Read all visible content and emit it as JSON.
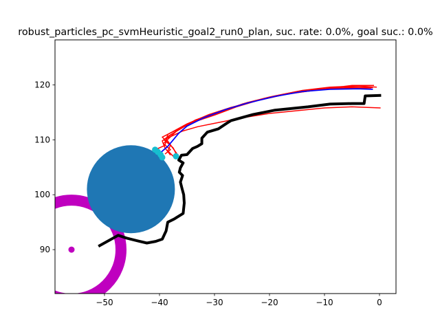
{
  "chart_data": {
    "type": "line",
    "title": "robust_particles_pc_svmHeuristic_goal2_run0_plan, suc. rate: 0.0%, goal suc.: 0.0%",
    "xlabel": "",
    "ylabel": "",
    "xlim": [
      -59.0,
      3.0
    ],
    "ylim": [
      82.0,
      128.2
    ],
    "xticks": [
      -50,
      -40,
      -30,
      -20,
      -10,
      0
    ],
    "yticks": [
      90,
      100,
      110,
      120
    ],
    "grid": false,
    "legend": "none",
    "colors": {
      "actual_path": "#000000",
      "particle_paths": "#ff0000",
      "planned_path": "#0000ff",
      "obstacle": "#1f77b4",
      "goal": "#bf00bf",
      "markers": "#17becf"
    },
    "actual_path": [
      [
        -51.1,
        90.6
      ],
      [
        -47.5,
        92.6
      ],
      [
        -46.0,
        92.1
      ],
      [
        -44.0,
        91.6
      ],
      [
        -42.3,
        91.2
      ],
      [
        -40.7,
        91.5
      ],
      [
        -39.5,
        91.9
      ],
      [
        -38.8,
        93.4
      ],
      [
        -38.5,
        95.0
      ],
      [
        -37.3,
        95.6
      ],
      [
        -35.7,
        96.6
      ],
      [
        -35.5,
        98.5
      ],
      [
        -35.6,
        100.0
      ],
      [
        -35.9,
        101.1
      ],
      [
        -36.2,
        102.3
      ],
      [
        -35.8,
        103.5
      ],
      [
        -36.4,
        104.1
      ],
      [
        -36.2,
        104.9
      ],
      [
        -35.7,
        105.8
      ],
      [
        -36.5,
        106.3
      ],
      [
        -36.0,
        107.2
      ],
      [
        -35.0,
        107.3
      ],
      [
        -34.0,
        108.4
      ],
      [
        -33.1,
        108.8
      ],
      [
        -32.3,
        109.3
      ],
      [
        -32.3,
        110.3
      ],
      [
        -31.3,
        111.4
      ],
      [
        -29.3,
        112.0
      ],
      [
        -27.8,
        113.0
      ],
      [
        -27.0,
        113.5
      ],
      [
        -23.0,
        114.6
      ],
      [
        -19.0,
        115.4
      ],
      [
        -17.0,
        115.6
      ],
      [
        -13.0,
        116.0
      ],
      [
        -9.0,
        116.5
      ],
      [
        -5.0,
        116.6
      ],
      [
        -2.8,
        116.6
      ],
      [
        -2.6,
        118.0
      ],
      [
        0.3,
        118.1
      ]
    ],
    "particle_paths": [
      [
        [
          -37.0,
          107.5
        ],
        [
          -37.5,
          108.5
        ],
        [
          -38.5,
          109.5
        ],
        [
          -39.5,
          110.5
        ],
        [
          -36.5,
          112.0
        ],
        [
          -33.0,
          113.5
        ],
        [
          -29.0,
          115.0
        ],
        [
          -25.0,
          116.5
        ],
        [
          -20.0,
          117.8
        ],
        [
          -15.0,
          118.8
        ],
        [
          -10.0,
          119.3
        ],
        [
          -5.0,
          119.9
        ],
        [
          -1.0,
          119.9
        ]
      ],
      [
        [
          -37.5,
          107.0
        ],
        [
          -38.5,
          108.0
        ],
        [
          -38.0,
          109.0
        ],
        [
          -39.2,
          110.0
        ],
        [
          -35.5,
          112.6
        ],
        [
          -32.0,
          114.0
        ],
        [
          -28.0,
          115.5
        ],
        [
          -24.0,
          116.8
        ],
        [
          -19.0,
          118.0
        ],
        [
          -14.0,
          119.0
        ],
        [
          -9.0,
          119.6
        ],
        [
          -4.0,
          119.8
        ],
        [
          -0.5,
          119.6
        ]
      ],
      [
        [
          -38.0,
          107.2
        ],
        [
          -39.0,
          108.5
        ],
        [
          -39.5,
          109.8
        ],
        [
          -38.2,
          110.8
        ],
        [
          -34.5,
          113.0
        ],
        [
          -30.0,
          114.5
        ],
        [
          -26.0,
          116.0
        ],
        [
          -21.0,
          117.5
        ],
        [
          -16.0,
          118.5
        ],
        [
          -11.0,
          119.1
        ],
        [
          -6.0,
          119.5
        ],
        [
          -1.5,
          119.3
        ]
      ],
      [
        [
          -39.0,
          107.4
        ],
        [
          -38.0,
          108.2
        ],
        [
          -39.3,
          109.3
        ],
        [
          -37.0,
          111.5
        ],
        [
          -33.5,
          113.6
        ],
        [
          -29.5,
          115.0
        ],
        [
          -25.5,
          116.3
        ],
        [
          -20.5,
          117.6
        ],
        [
          -15.5,
          118.6
        ],
        [
          -10.5,
          119.2
        ],
        [
          -5.5,
          119.6
        ],
        [
          -1.2,
          119.5
        ]
      ],
      [
        [
          -36.5,
          107.0
        ],
        [
          -37.8,
          108.8
        ],
        [
          -38.8,
          110.2
        ],
        [
          -35.8,
          111.6
        ],
        [
          -33.0,
          112.4
        ],
        [
          -30.0,
          113.0
        ],
        [
          -25.0,
          114.0
        ],
        [
          -20.0,
          114.8
        ],
        [
          -15.0,
          115.3
        ],
        [
          -10.0,
          115.8
        ],
        [
          -5.0,
          116.0
        ],
        [
          0.2,
          115.8
        ]
      ],
      [
        [
          -39.8,
          107.6
        ],
        [
          -40.3,
          108.4
        ],
        [
          -39.0,
          109.0
        ],
        [
          -38.5,
          111.0
        ],
        [
          -35.0,
          112.9
        ],
        [
          -31.0,
          114.6
        ],
        [
          -27.0,
          115.9
        ],
        [
          -22.0,
          117.2
        ],
        [
          -17.0,
          118.3
        ],
        [
          -12.0,
          119.0
        ],
        [
          -7.0,
          119.4
        ],
        [
          -2.0,
          119.6
        ]
      ]
    ],
    "planned_path": [
      [
        -40.0,
        107.5
      ],
      [
        -38.5,
        108.8
      ],
      [
        -37.5,
        110.0
      ],
      [
        -36.5,
        111.2
      ],
      [
        -35.0,
        112.5
      ],
      [
        -32.0,
        114.0
      ],
      [
        -28.0,
        115.5
      ],
      [
        -24.0,
        116.7
      ],
      [
        -19.0,
        117.9
      ],
      [
        -14.0,
        118.8
      ],
      [
        -9.0,
        119.2
      ],
      [
        -4.0,
        119.3
      ],
      [
        -1.2,
        119.2
      ]
    ],
    "obstacle": {
      "center": [
        -45.2,
        101.0
      ],
      "radius": 8.0
    },
    "goal": {
      "center": [
        -56.0,
        90.0
      ],
      "inner_radius": 8.0,
      "outer_radius": 10.0
    },
    "markers": [
      [
        -40.8,
        108.2
      ],
      [
        -39.5,
        106.8
      ],
      [
        -37.0,
        107.0
      ],
      [
        -40.3,
        107.8
      ],
      [
        -39.8,
        107.3
      ]
    ]
  }
}
